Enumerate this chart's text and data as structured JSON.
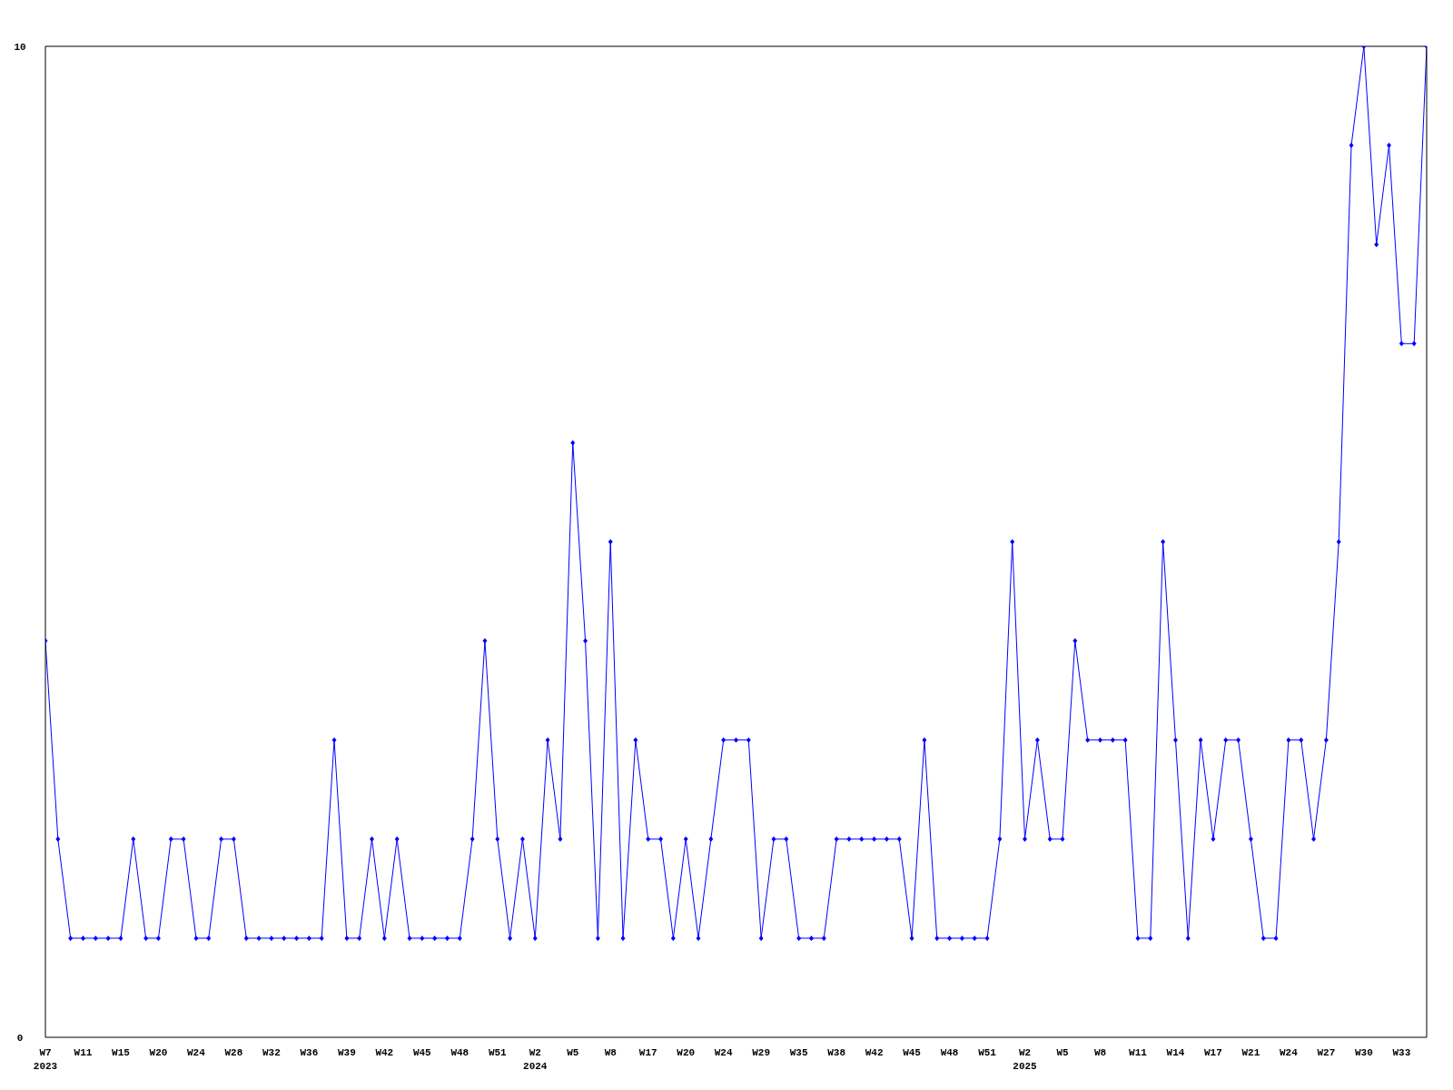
{
  "chart_data": {
    "type": "line",
    "categories": [
      "W7\n2023",
      null,
      null,
      "W11",
      null,
      null,
      "W15",
      null,
      null,
      "W20",
      null,
      null,
      "W24",
      null,
      null,
      "W28",
      null,
      null,
      "W32",
      null,
      null,
      "W36",
      null,
      null,
      "W39",
      null,
      null,
      "W42",
      null,
      null,
      "W45",
      null,
      null,
      "W48",
      null,
      null,
      "W51",
      null,
      null,
      "W2\n2024",
      null,
      null,
      "W5",
      null,
      null,
      "W8",
      null,
      null,
      "W17",
      null,
      null,
      "W20",
      null,
      null,
      "W24",
      null,
      null,
      "W29",
      null,
      null,
      "W35",
      null,
      null,
      "W38",
      null,
      null,
      "W42",
      null,
      null,
      "W45",
      null,
      null,
      "W48",
      null,
      null,
      "W51",
      null,
      null,
      "W2\n2025",
      null,
      null,
      "W5",
      null,
      null,
      "W8",
      null,
      null,
      "W11",
      null,
      null,
      "W14",
      null,
      null,
      "W17",
      null,
      null,
      "W21",
      null,
      null,
      "W24",
      null,
      null,
      "W27",
      null,
      null,
      "W30",
      null,
      null,
      "W33",
      null,
      null
    ],
    "series": [
      {
        "color": "#0000ff",
        "values": [
          4,
          2,
          1,
          1,
          1,
          1,
          1,
          2,
          1,
          1,
          2,
          2,
          1,
          1,
          2,
          2,
          1,
          1,
          1,
          1,
          1,
          1,
          1,
          3,
          1,
          1,
          2,
          1,
          2,
          1,
          1,
          1,
          1,
          1,
          2,
          4,
          2,
          1,
          2,
          1,
          3,
          2,
          6,
          4,
          1,
          5,
          1,
          3,
          2,
          2,
          1,
          2,
          1,
          2,
          3,
          3,
          3,
          1,
          2,
          2,
          1,
          1,
          1,
          2,
          2,
          2,
          2,
          2,
          2,
          1,
          3,
          1,
          1,
          1,
          1,
          1,
          2,
          5,
          2,
          3,
          2,
          2,
          4,
          3,
          3,
          3,
          3,
          1,
          1,
          5,
          3,
          1,
          3,
          2,
          3,
          3,
          2,
          1,
          1,
          3,
          3,
          2,
          3,
          5,
          9,
          10,
          8,
          9,
          7,
          7,
          10
        ]
      }
    ],
    "ylim": [
      0,
      10
    ],
    "yticks": [
      0,
      10
    ],
    "marker": "diamond"
  }
}
